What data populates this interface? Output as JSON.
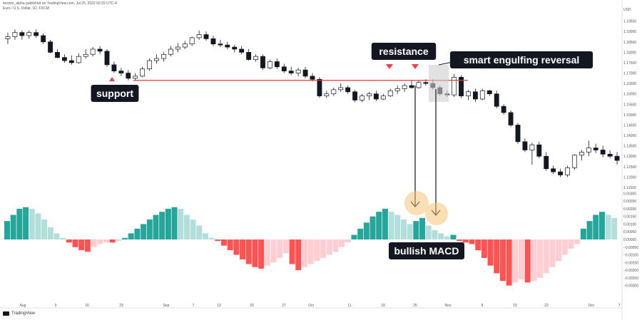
{
  "header": {
    "published": "toronto_alpha published on TradingView.com, Jul 25, 2022 02:29 UTC-4",
    "symbol": "Euro / U.S. Dollar, 1D, FXCM"
  },
  "branding": {
    "logo_text": "TradingView"
  },
  "colors": {
    "bull_candle": "#ffffff",
    "bear_candle": "#131722",
    "candle_outline": "#131722",
    "support_line": "#e0393e",
    "marker": "#ef3f4a",
    "macd_strong_up": "#26a69a",
    "macd_weak_up": "#b2dfdb",
    "macd_strong_down": "#ff5252",
    "macd_weak_down": "#ffcdd2",
    "callout_bg": "#131722",
    "callout_text": "#ffffff",
    "highlight_circle": "#f5c06b"
  },
  "annotations": {
    "support": "support",
    "resistance": "resistance",
    "reversal": "smart engulfing reversal",
    "macd": "bullish MACD"
  },
  "chart_data": [
    {
      "type": "candlestick",
      "title": "Euro / U.S. Dollar, 1D, FXCM",
      "y_axis_unit": "USD",
      "ylim": [
        1.115,
        1.2
      ],
      "y_ticks": [
        "1.19500",
        "1.19000",
        "1.18500",
        "1.18000",
        "1.17500",
        "1.17000",
        "1.16500",
        "1.16000",
        "1.15500",
        "1.15000",
        "1.14500",
        "1.14000",
        "1.13500",
        "1.13000",
        "1.12500",
        "1.12000",
        "1.11500"
      ],
      "x_ticks": [
        "Aug",
        "9",
        "16",
        "23",
        "Sep",
        "7",
        "13",
        "20",
        "27",
        "Oct",
        "11",
        "18",
        "25",
        "Nov",
        "8",
        "15",
        "22",
        "Dec",
        "7"
      ],
      "support_level": 1.1665,
      "candles": [
        [
          1.1865,
          1.1895,
          1.184,
          1.1875
        ],
        [
          1.1875,
          1.191,
          1.186,
          1.1895
        ],
        [
          1.1895,
          1.1905,
          1.186,
          1.188
        ],
        [
          1.188,
          1.1905,
          1.1865,
          1.1895
        ],
        [
          1.1895,
          1.191,
          1.187,
          1.188
        ],
        [
          1.188,
          1.189,
          1.184,
          1.185
        ],
        [
          1.185,
          1.186,
          1.1795,
          1.18
        ],
        [
          1.18,
          1.1815,
          1.177,
          1.1775
        ],
        [
          1.1775,
          1.179,
          1.175,
          1.176
        ],
        [
          1.176,
          1.1785,
          1.174,
          1.175
        ],
        [
          1.175,
          1.1795,
          1.1745,
          1.178
        ],
        [
          1.178,
          1.1815,
          1.177,
          1.179
        ],
        [
          1.179,
          1.1825,
          1.178,
          1.1815
        ],
        [
          1.1815,
          1.183,
          1.179,
          1.1805
        ],
        [
          1.1805,
          1.1815,
          1.173,
          1.174
        ],
        [
          1.174,
          1.1755,
          1.17,
          1.171
        ],
        [
          1.171,
          1.1725,
          1.1685,
          1.17
        ],
        [
          1.17,
          1.1715,
          1.1665,
          1.1675
        ],
        [
          1.1675,
          1.17,
          1.1665,
          1.1685
        ],
        [
          1.1685,
          1.173,
          1.168,
          1.172
        ],
        [
          1.172,
          1.177,
          1.171,
          1.176
        ],
        [
          1.176,
          1.179,
          1.1745,
          1.177
        ],
        [
          1.177,
          1.18,
          1.1755,
          1.179
        ],
        [
          1.179,
          1.183,
          1.178,
          1.1815
        ],
        [
          1.1815,
          1.1845,
          1.18,
          1.1825
        ],
        [
          1.1825,
          1.1855,
          1.1815,
          1.184
        ],
        [
          1.184,
          1.1875,
          1.183,
          1.187
        ],
        [
          1.187,
          1.1905,
          1.186,
          1.1885
        ],
        [
          1.1885,
          1.19,
          1.1855,
          1.1865
        ],
        [
          1.1865,
          1.188,
          1.183,
          1.184
        ],
        [
          1.184,
          1.186,
          1.1825,
          1.1835
        ],
        [
          1.1835,
          1.185,
          1.1815,
          1.1825
        ],
        [
          1.1825,
          1.1835,
          1.18,
          1.1815
        ],
        [
          1.1815,
          1.183,
          1.179,
          1.18
        ],
        [
          1.18,
          1.1815,
          1.176,
          1.1765
        ],
        [
          1.1765,
          1.179,
          1.1755,
          1.178
        ],
        [
          1.178,
          1.179,
          1.1715,
          1.1725
        ],
        [
          1.1725,
          1.1765,
          1.172,
          1.1755
        ],
        [
          1.1755,
          1.177,
          1.172,
          1.173
        ],
        [
          1.173,
          1.1745,
          1.17,
          1.171
        ],
        [
          1.171,
          1.173,
          1.169,
          1.17
        ],
        [
          1.17,
          1.1725,
          1.1685,
          1.1715
        ],
        [
          1.1715,
          1.173,
          1.1675,
          1.1685
        ],
        [
          1.1685,
          1.17,
          1.166,
          1.167
        ],
        [
          1.167,
          1.168,
          1.158,
          1.159
        ],
        [
          1.159,
          1.1615,
          1.158,
          1.16
        ],
        [
          1.16,
          1.163,
          1.159,
          1.162
        ],
        [
          1.162,
          1.165,
          1.161,
          1.163
        ],
        [
          1.163,
          1.164,
          1.16,
          1.161
        ],
        [
          1.161,
          1.162,
          1.156,
          1.157
        ],
        [
          1.157,
          1.16,
          1.156,
          1.159
        ],
        [
          1.159,
          1.161,
          1.157,
          1.16
        ],
        [
          1.16,
          1.1615,
          1.1565,
          1.1575
        ],
        [
          1.1575,
          1.16,
          1.157,
          1.159
        ],
        [
          1.159,
          1.1625,
          1.1585,
          1.1615
        ],
        [
          1.1615,
          1.164,
          1.16,
          1.1625
        ],
        [
          1.1625,
          1.165,
          1.161,
          1.164
        ],
        [
          1.164,
          1.1665,
          1.1625,
          1.163
        ],
        [
          1.163,
          1.1665,
          1.1625,
          1.1655
        ],
        [
          1.1655,
          1.167,
          1.164,
          1.165
        ],
        [
          1.165,
          1.167,
          1.162,
          1.163
        ],
        [
          1.163,
          1.164,
          1.159,
          1.16
        ],
        [
          1.16,
          1.1615,
          1.1585,
          1.1595
        ],
        [
          1.1595,
          1.1695,
          1.1585,
          1.168
        ],
        [
          1.168,
          1.169,
          1.158,
          1.159
        ],
        [
          1.159,
          1.162,
          1.157,
          1.161
        ],
        [
          1.161,
          1.1625,
          1.156,
          1.1575
        ],
        [
          1.1575,
          1.1625,
          1.157,
          1.1615
        ],
        [
          1.1615,
          1.162,
          1.159,
          1.16
        ],
        [
          1.16,
          1.1615,
          1.153,
          1.154
        ],
        [
          1.154,
          1.155,
          1.15,
          1.151
        ],
        [
          1.151,
          1.152,
          1.144,
          1.145
        ],
        [
          1.145,
          1.146,
          1.136,
          1.137
        ],
        [
          1.137,
          1.1385,
          1.132,
          1.133
        ],
        [
          1.133,
          1.1365,
          1.126,
          1.1355
        ],
        [
          1.1355,
          1.137,
          1.129,
          1.13
        ],
        [
          1.13,
          1.132,
          1.123,
          1.124
        ],
        [
          1.124,
          1.1255,
          1.1215,
          1.1225
        ],
        [
          1.1225,
          1.124,
          1.12,
          1.121
        ],
        [
          1.121,
          1.1255,
          1.12,
          1.1245
        ],
        [
          1.1245,
          1.131,
          1.1235,
          1.1305
        ],
        [
          1.1305,
          1.133,
          1.128,
          1.132
        ],
        [
          1.132,
          1.1375,
          1.13,
          1.134
        ],
        [
          1.134,
          1.136,
          1.1315,
          1.133
        ],
        [
          1.133,
          1.135,
          1.1295,
          1.131
        ],
        [
          1.131,
          1.133,
          1.129,
          1.13
        ],
        [
          1.13,
          1.132,
          1.126,
          1.128
        ]
      ]
    },
    {
      "type": "bar",
      "title": "MACD histogram",
      "ylim": [
        -0.0032,
        0.0032
      ],
      "y_ticks": [
        "0.00300",
        "0.00250",
        "0.00200",
        "0.00150",
        "0.00100",
        "0.00050",
        "0.00000",
        "−0.00050",
        "−0.00100",
        "−0.00150",
        "−0.00200",
        "−0.00250",
        "−0.00300"
      ],
      "values": [
        0.0012,
        0.0016,
        0.002,
        0.0021,
        0.002,
        0.0017,
        0.0013,
        0.0008,
        0.0004,
        0.0001,
        -0.0002,
        -0.0005,
        -0.0007,
        -0.0008,
        -0.0005,
        -0.0003,
        -0.0002,
        -0.0002,
        -0.0001,
        0.0001,
        0.0004,
        0.0007,
        0.001,
        0.0013,
        0.0016,
        0.0018,
        0.002,
        0.0021,
        0.002,
        0.0016,
        0.0013,
        0.0009,
        0.0004,
        0.0001,
        -0.0001,
        -0.0004,
        -0.0007,
        -0.001,
        -0.0013,
        -0.0016,
        -0.0018,
        -0.0019,
        -0.0017,
        -0.0015,
        -0.0012,
        -0.0009,
        -0.0016,
        -0.002,
        -0.0018,
        -0.0016,
        -0.0014,
        -0.0012,
        -0.001,
        -0.0008,
        -0.0005,
        -0.0002,
        0.0003,
        0.0007,
        0.0011,
        0.0015,
        0.0018,
        0.002,
        0.0018,
        0.0016,
        0.0013,
        0.001,
        0.0012,
        0.0014,
        0.0009,
        0.0006,
        0.0004,
        0.0002,
        0.0003,
        -0.0001,
        -0.0002,
        -0.0003,
        -0.0007,
        -0.0012,
        -0.0017,
        -0.0022,
        -0.0027,
        -0.003,
        -0.0028,
        -0.0026,
        -0.0028,
        -0.0027,
        -0.0025,
        -0.0022,
        -0.0018,
        -0.0014,
        -0.001,
        -0.0006,
        -0.0003,
        0.0007,
        0.0012,
        0.0016,
        0.0018,
        0.0016,
        0.0014
      ]
    }
  ]
}
